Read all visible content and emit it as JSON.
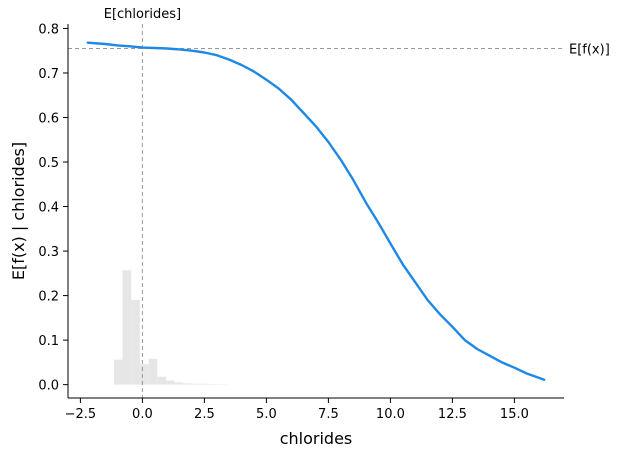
{
  "chart_data": {
    "type": "line",
    "xlabel": "chlorides",
    "ylabel": "E[f(x) | chlorides]",
    "xlim": [
      -3.0,
      17.0
    ],
    "ylim": [
      -0.03,
      0.81
    ],
    "xticks": [
      -2.5,
      0.0,
      2.5,
      5.0,
      7.5,
      10.0,
      12.5,
      15.0
    ],
    "xtick_labels": [
      "−2.5",
      "0.0",
      "2.5",
      "5.0",
      "7.5",
      "10.0",
      "12.5",
      "15.0"
    ],
    "yticks": [
      0.0,
      0.1,
      0.2,
      0.3,
      0.4,
      0.5,
      0.6,
      0.7,
      0.8
    ],
    "ytick_labels": [
      "0.0",
      "0.1",
      "0.2",
      "0.3",
      "0.4",
      "0.5",
      "0.6",
      "0.7",
      "0.8"
    ],
    "grid": false,
    "series": [
      {
        "color": "#1e88e5",
        "x": [
          -2.2,
          -1.5,
          -1.0,
          -0.5,
          0.0,
          0.5,
          1.0,
          1.5,
          2.0,
          2.5,
          3.0,
          3.5,
          4.0,
          4.5,
          5.0,
          5.5,
          6.0,
          6.5,
          7.0,
          7.5,
          8.0,
          8.5,
          9.0,
          9.5,
          10.0,
          10.5,
          11.0,
          11.5,
          12.0,
          12.5,
          13.0,
          13.5,
          14.0,
          14.5,
          15.0,
          15.5,
          16.2
        ],
        "y": [
          0.768,
          0.765,
          0.762,
          0.76,
          0.757,
          0.756,
          0.755,
          0.753,
          0.75,
          0.746,
          0.74,
          0.73,
          0.718,
          0.703,
          0.685,
          0.665,
          0.64,
          0.61,
          0.58,
          0.545,
          0.505,
          0.46,
          0.41,
          0.365,
          0.317,
          0.27,
          0.23,
          0.19,
          0.158,
          0.13,
          0.1,
          0.08,
          0.065,
          0.05,
          0.038,
          0.025,
          0.011
        ]
      }
    ],
    "histogram": {
      "color": "#e6e6e6",
      "bins": [
        {
          "x0": -1.15,
          "x1": -0.8,
          "value": 0.056
        },
        {
          "x0": -0.8,
          "x1": -0.45,
          "value": 0.257
        },
        {
          "x0": -0.45,
          "x1": -0.1,
          "value": 0.19
        },
        {
          "x0": -0.1,
          "x1": 0.25,
          "value": 0.046
        },
        {
          "x0": 0.25,
          "x1": 0.6,
          "value": 0.058
        },
        {
          "x0": 0.6,
          "x1": 0.95,
          "value": 0.018
        },
        {
          "x0": 0.95,
          "x1": 1.3,
          "value": 0.009
        },
        {
          "x0": 1.3,
          "x1": 1.65,
          "value": 0.005
        },
        {
          "x0": 1.65,
          "x1": 2.0,
          "value": 0.003
        },
        {
          "x0": 2.0,
          "x1": 2.35,
          "value": 0.002
        },
        {
          "x0": 2.35,
          "x1": 2.7,
          "value": 0.002
        },
        {
          "x0": 2.7,
          "x1": 3.05,
          "value": 0.001
        },
        {
          "x0": 3.05,
          "x1": 3.4,
          "value": 0.001
        }
      ]
    },
    "reference_lines": {
      "color": "#999999",
      "vertical": {
        "x": 0.0,
        "label": "E[chlorides]"
      },
      "horizontal": {
        "y": 0.755,
        "label": "E[f(x)]"
      }
    }
  }
}
